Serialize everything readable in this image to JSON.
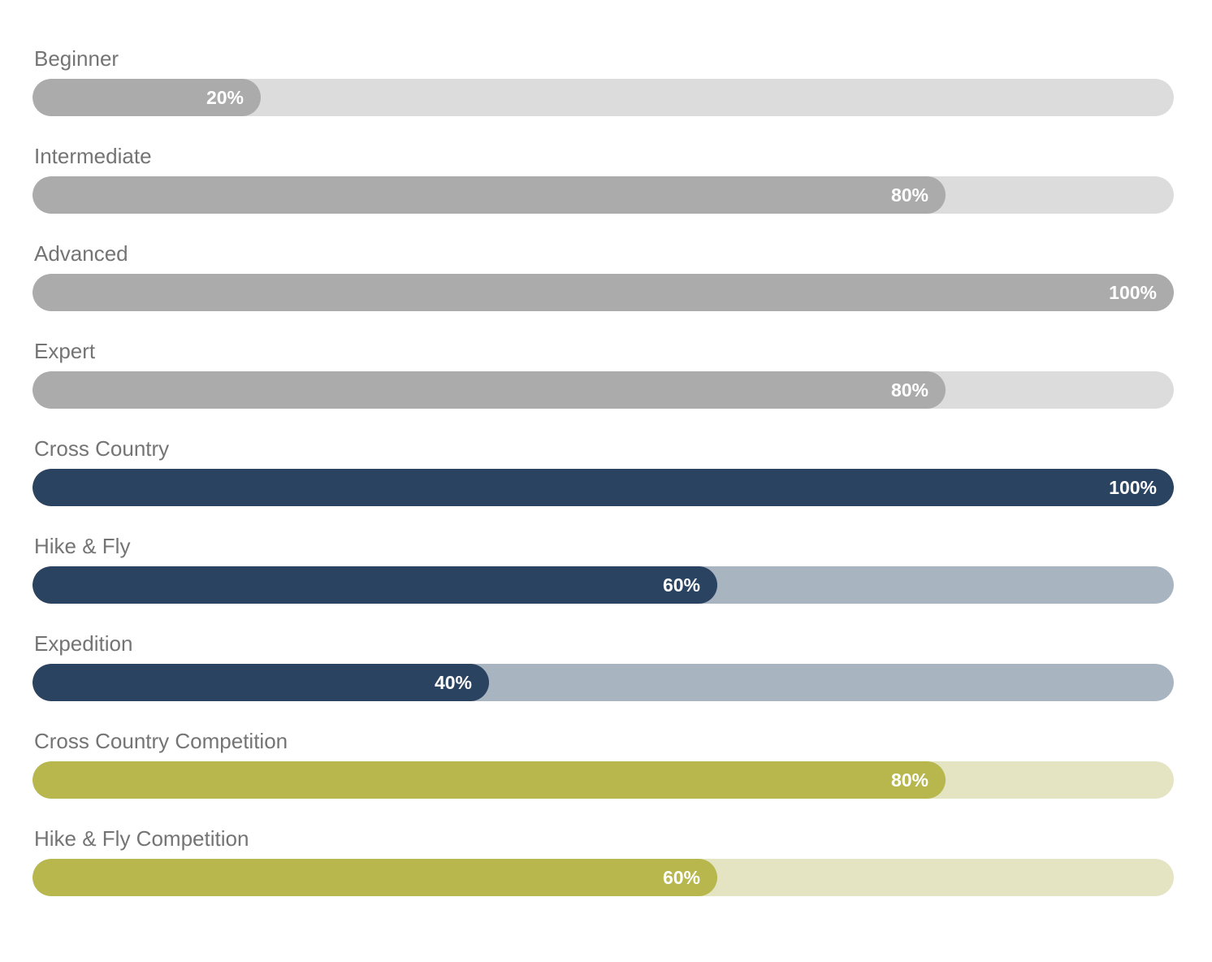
{
  "chart_data": {
    "type": "bar",
    "orientation": "horizontal",
    "title": "",
    "xlabel": "",
    "ylabel": "",
    "xlim": [
      0,
      100
    ],
    "value_unit": "%",
    "grid": false,
    "legend": false,
    "categories": [
      "Beginner",
      "Intermediate",
      "Advanced",
      "Expert",
      "Cross Country",
      "Hike & Fly",
      "Expedition",
      "Cross Country Competition",
      "Hike & Fly Competition"
    ],
    "values": [
      20,
      80,
      100,
      80,
      100,
      60,
      40,
      80,
      60
    ],
    "data_labels": [
      "20%",
      "80%",
      "100%",
      "80%",
      "100%",
      "60%",
      "40%",
      "80%",
      "60%"
    ],
    "bar_colors": [
      "#ababab",
      "#ababab",
      "#ababab",
      "#ababab",
      "#2a4360",
      "#2a4360",
      "#2a4360",
      "#b7b74d",
      "#b7b74d"
    ],
    "track_colors": [
      "#dcdcdc",
      "#dcdcdc",
      "#dcdcdc",
      "#dcdcdc",
      "#a9b4c1",
      "#a9b4c1",
      "#a9b4c1",
      "#e4e4c3",
      "#e4e4c3"
    ]
  },
  "colors": {
    "background": "#ffffff",
    "label_text": "#747474",
    "percent_text": "#ffffff",
    "gray_fill": "#ababab",
    "gray_track": "#dcdcdc",
    "navy_fill": "#2a4360",
    "navy_track": "#a9b4c1",
    "olive_fill": "#b7b74d",
    "olive_track": "#e4e4c3"
  },
  "rows": [
    {
      "label": "Beginner",
      "value": 20,
      "percent_label": "20%"
    },
    {
      "label": "Intermediate",
      "value": 80,
      "percent_label": "80%"
    },
    {
      "label": "Advanced",
      "value": 100,
      "percent_label": "100%"
    },
    {
      "label": "Expert",
      "value": 80,
      "percent_label": "80%"
    },
    {
      "label": "Cross Country",
      "value": 100,
      "percent_label": "100%"
    },
    {
      "label": "Hike & Fly",
      "value": 60,
      "percent_label": "60%"
    },
    {
      "label": "Expedition",
      "value": 40,
      "percent_label": "40%"
    },
    {
      "label": "Cross Country Competition",
      "value": 80,
      "percent_label": "80%"
    },
    {
      "label": "Hike & Fly Competition",
      "value": 60,
      "percent_label": "60%"
    }
  ]
}
